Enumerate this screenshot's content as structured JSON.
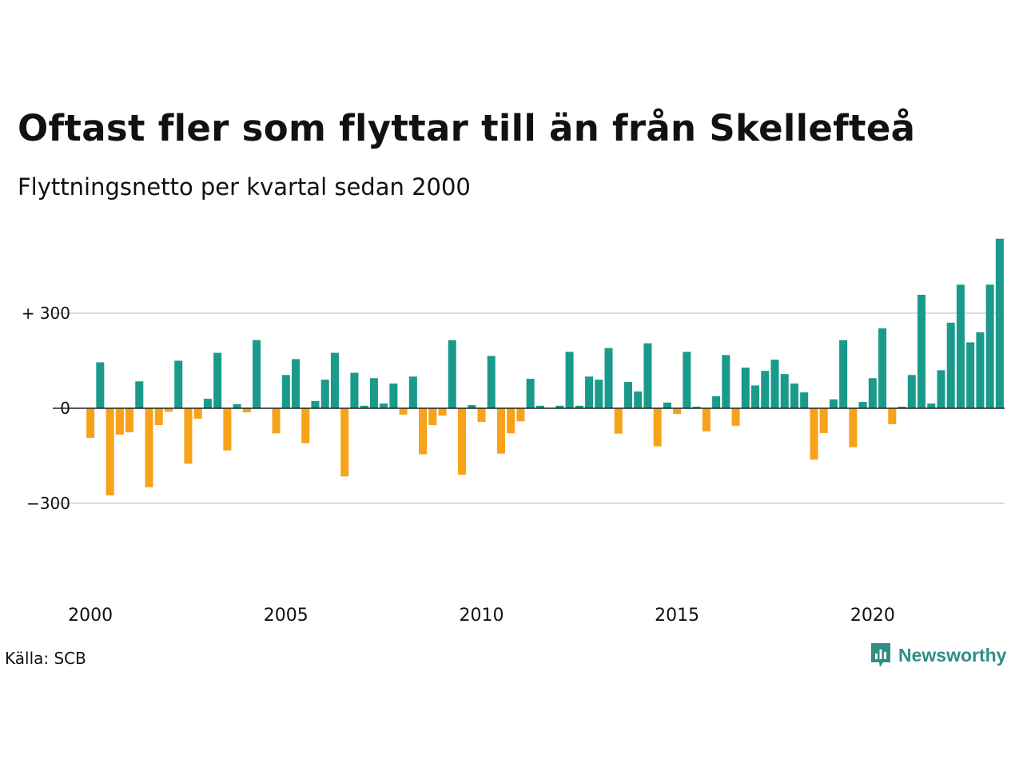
{
  "header": {
    "title": "Oftast fler som flyttar till än från Skellefteå",
    "subtitle": "Flyttningsnetto per kvartal sedan 2000"
  },
  "footer": {
    "source": "Källa: SCB",
    "brand": "Newsworthy"
  },
  "colors": {
    "positive": "#1a9a8a",
    "negative": "#f7a21b",
    "grid": "#dddddd",
    "zero_line": "#222222",
    "brand": "#2f8f82"
  },
  "chart_data": {
    "type": "bar",
    "title": "Oftast fler som flyttar till än från Skellefteå",
    "subtitle": "Flyttningsnetto per kvartal sedan 2000",
    "x_start_year": 2000,
    "x_start_quarter": 1,
    "x_tick_labels": [
      "2000",
      "2005",
      "2010",
      "2015",
      "2020"
    ],
    "y_ticks": [
      {
        "value": 300,
        "label": "+ 300"
      },
      {
        "value": 0,
        "label": "0"
      },
      {
        "value": -300,
        "label": "−300"
      }
    ],
    "ylim": [
      -535,
      535
    ],
    "grid": true,
    "values": [
      -93,
      145,
      -275,
      -83,
      -76,
      85,
      -249,
      -53,
      -11,
      150,
      -175,
      -33,
      30,
      175,
      -133,
      13,
      -13,
      215,
      0,
      -79,
      105,
      155,
      -110,
      23,
      90,
      175,
      -215,
      112,
      8,
      95,
      15,
      78,
      -20,
      100,
      -145,
      -53,
      -23,
      215,
      -210,
      10,
      -43,
      165,
      -143,
      -79,
      -41,
      93,
      8,
      0,
      8,
      178,
      8,
      100,
      90,
      190,
      -80,
      83,
      53,
      205,
      -120,
      18,
      -18,
      178,
      5,
      -73,
      38,
      168,
      -55,
      128,
      72,
      118,
      153,
      108,
      78,
      50,
      -162,
      -78,
      28,
      215,
      -123,
      20,
      95,
      252,
      -50,
      5,
      105,
      358,
      15,
      120,
      270,
      390,
      208,
      240,
      390,
      535
    ]
  }
}
